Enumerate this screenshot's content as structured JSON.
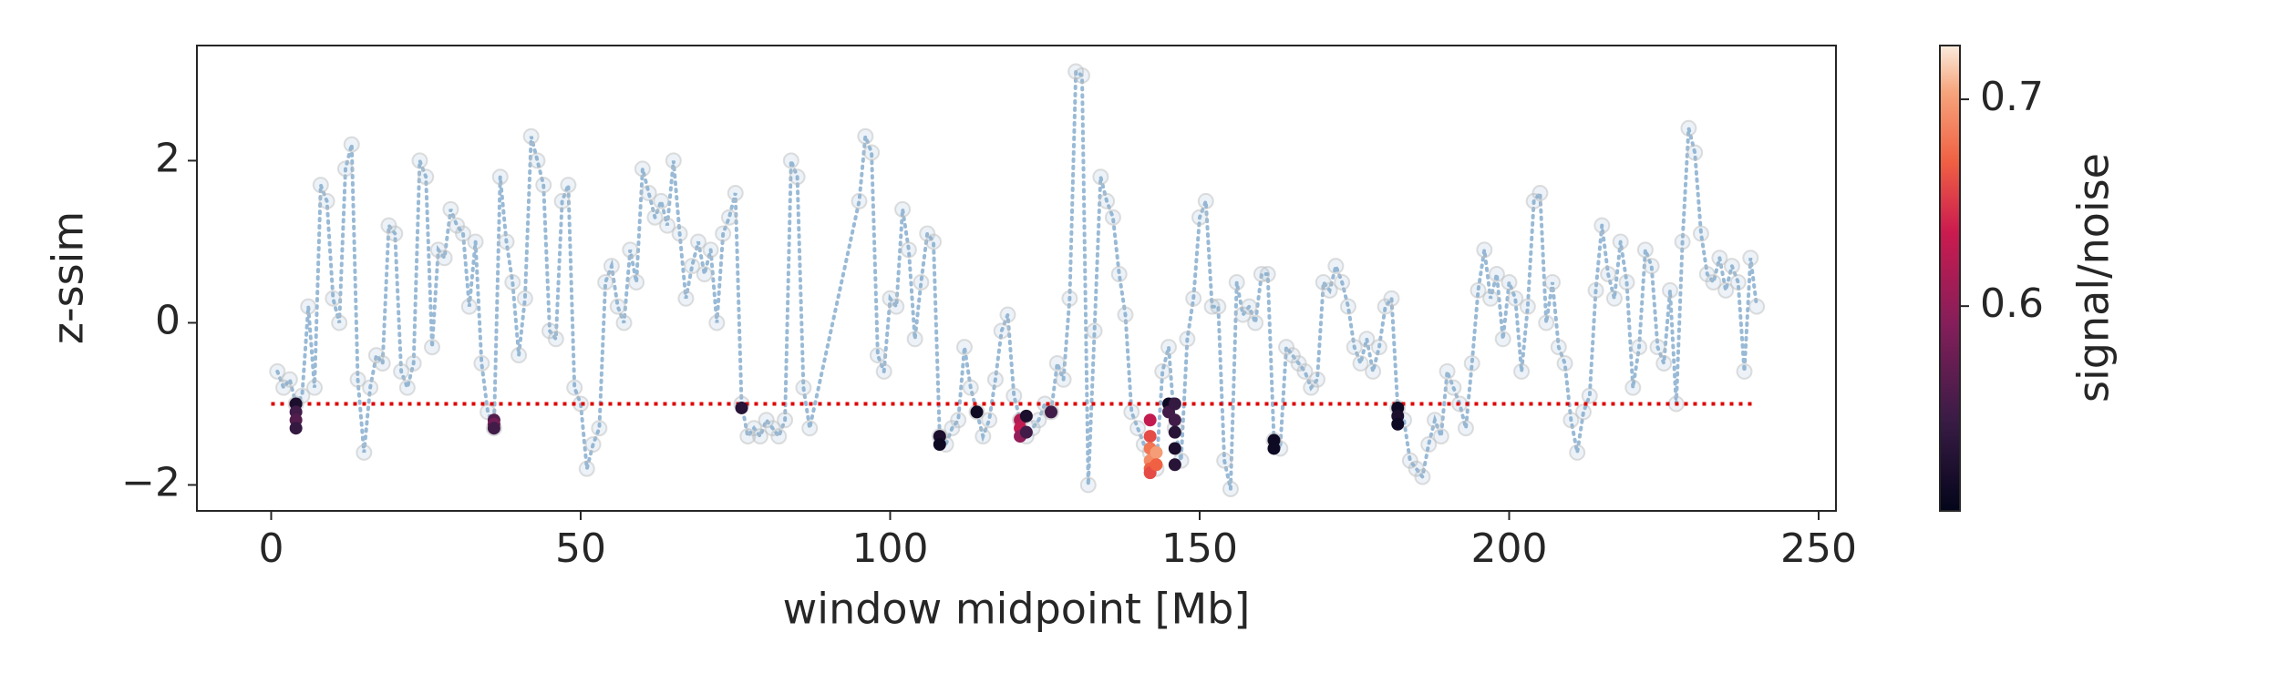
{
  "chart_data": {
    "type": "scatter",
    "xlabel": "window midpoint [Mb]",
    "ylabel": "z-ssim",
    "xlim": [
      -12,
      252.8
    ],
    "ylim": [
      -2.32,
      3.42
    ],
    "xticks": [
      0,
      50,
      100,
      150,
      200,
      250
    ],
    "yticks": [
      {
        "value": -2,
        "label": "−2"
      },
      0,
      2
    ],
    "grid": false,
    "series": [
      {
        "color": "#7fa9cc",
        "marker_color": "#bdbdbd",
        "x": [
          1,
          2,
          3,
          4,
          5,
          6,
          7,
          8,
          9,
          10,
          11,
          12,
          13,
          14,
          15,
          16,
          17,
          18,
          19,
          20,
          21,
          22,
          23,
          24,
          25,
          26,
          27,
          28,
          29,
          30,
          31,
          32,
          33,
          34,
          35,
          36,
          37,
          38,
          39,
          40,
          41,
          42,
          43,
          44,
          45,
          46,
          47,
          48,
          49,
          50,
          51,
          52,
          53,
          54,
          55,
          56,
          57,
          58,
          59,
          60,
          61,
          62,
          63,
          64,
          65,
          66,
          67,
          68,
          69,
          70,
          71,
          72,
          73,
          74,
          75,
          76,
          77,
          78,
          79,
          80,
          81,
          82,
          83,
          84,
          85,
          86,
          87,
          95,
          96,
          97,
          98,
          99,
          100,
          101,
          102,
          103,
          104,
          105,
          106,
          107,
          108,
          109,
          110,
          111,
          112,
          113,
          114,
          115,
          116,
          117,
          118,
          119,
          120,
          121,
          122,
          123,
          124,
          125,
          126,
          127,
          128,
          129,
          130,
          131,
          132,
          133,
          134,
          135,
          136,
          137,
          138,
          139,
          140,
          141,
          142,
          143,
          144,
          145,
          146,
          147,
          148,
          149,
          150,
          151,
          152,
          153,
          154,
          155,
          156,
          157,
          158,
          159,
          160,
          161,
          162,
          163,
          164,
          165,
          166,
          167,
          168,
          169,
          170,
          171,
          172,
          173,
          174,
          175,
          176,
          177,
          178,
          179,
          180,
          181,
          182,
          183,
          184,
          185,
          186,
          187,
          188,
          189,
          190,
          191,
          192,
          193,
          194,
          195,
          196,
          197,
          198,
          199,
          200,
          201,
          202,
          203,
          204,
          205,
          206,
          207,
          208,
          209,
          210,
          211,
          212,
          213,
          214,
          215,
          216,
          217,
          218,
          219,
          220,
          221,
          222,
          223,
          224,
          225,
          226,
          227,
          228,
          229,
          230,
          231,
          232,
          233,
          234,
          235,
          236,
          237,
          238,
          239,
          240
        ],
        "values": [
          -0.6,
          -0.8,
          -0.7,
          -1.0,
          -0.9,
          0.2,
          -0.8,
          1.7,
          1.5,
          0.3,
          0,
          1.9,
          2.2,
          -0.7,
          -1.6,
          -0.8,
          -0.4,
          -0.5,
          1.2,
          1.1,
          -0.6,
          -0.8,
          -0.5,
          2.0,
          1.8,
          -0.3,
          0.9,
          0.8,
          1.4,
          1.2,
          1.1,
          0.2,
          1.0,
          -0.5,
          -1.1,
          -1.3,
          1.8,
          1.0,
          0.5,
          -0.4,
          0.3,
          2.3,
          2.0,
          1.7,
          -0.1,
          -0.2,
          1.5,
          1.7,
          -0.8,
          -1.0,
          -1.8,
          -1.5,
          -1.3,
          0.5,
          0.7,
          0.2,
          0,
          0.9,
          0.5,
          1.9,
          1.6,
          1.3,
          1.5,
          1.2,
          2.0,
          1.1,
          0.3,
          0.7,
          1.0,
          0.6,
          0.9,
          0,
          1.1,
          1.3,
          1.6,
          -1.0,
          -1.4,
          -1.3,
          -1.4,
          -1.2,
          -1.3,
          -1.4,
          -1.2,
          2.0,
          1.8,
          -0.8,
          -1.3,
          1.5,
          2.3,
          2.1,
          -0.4,
          -0.6,
          0.3,
          0.2,
          1.4,
          0.9,
          -0.2,
          0.5,
          1.1,
          1.0,
          -1.4,
          -1.5,
          -1.3,
          -1.2,
          -0.3,
          -0.8,
          -1.1,
          -1.4,
          -1.2,
          -0.7,
          -0.1,
          0.1,
          -0.9,
          -1.2,
          -1.4,
          -1.3,
          -1.2,
          -1.0,
          -1.1,
          -0.5,
          -0.7,
          0.3,
          3.1,
          3.05,
          -2.0,
          -0.1,
          1.8,
          1.5,
          1.3,
          0.6,
          0.1,
          -1.1,
          -1.3,
          -1.5,
          -1.6,
          -1.8,
          -0.6,
          -0.3,
          -1.3,
          -1.7,
          -0.2,
          0.3,
          1.3,
          1.5,
          0.2,
          0.2,
          -1.7,
          -2.05,
          0.5,
          0.1,
          0.2,
          0,
          0.6,
          0.6,
          -1.45,
          -1.55,
          -0.3,
          -0.4,
          -0.5,
          -0.6,
          -0.8,
          -0.7,
          0.5,
          0.4,
          0.7,
          0.5,
          0.2,
          -0.3,
          -0.5,
          -0.2,
          -0.6,
          -0.3,
          0.2,
          0.3,
          -1.05,
          -1.2,
          -1.7,
          -1.8,
          -1.9,
          -1.5,
          -1.2,
          -1.4,
          -0.6,
          -0.8,
          -1.0,
          -1.3,
          -0.5,
          0.4,
          0.9,
          0.3,
          0.6,
          -0.2,
          0.5,
          0.3,
          -0.6,
          0.2,
          1.5,
          1.6,
          0,
          0.5,
          -0.3,
          -0.5,
          -1.2,
          -1.6,
          -1.1,
          -0.9,
          0.4,
          1.2,
          0.6,
          0.3,
          1.0,
          0.5,
          -0.8,
          -0.3,
          0.9,
          0.7,
          -0.3,
          -0.5,
          0.4,
          -1.0,
          1.0,
          2.4,
          2.1,
          1.1,
          0.6,
          0.5,
          0.8,
          0.4,
          0.7,
          0.5,
          -0.6,
          0.8,
          0.2
        ]
      }
    ],
    "threshold": {
      "value": -1,
      "x": [
        0,
        240
      ],
      "color": "#dd0000"
    },
    "highlight": {
      "x": [
        4,
        4,
        4,
        4,
        36,
        36,
        36,
        76,
        108,
        108,
        114,
        121,
        121,
        121,
        122,
        122,
        126,
        142,
        142,
        142,
        142,
        142,
        142,
        143,
        143,
        145,
        145,
        146,
        146,
        146,
        146,
        146,
        162,
        162,
        182,
        182,
        182
      ],
      "values": [
        -1.0,
        -1.1,
        -1.2,
        -1.3,
        -1.2,
        -1.25,
        -1.3,
        -1.05,
        -1.4,
        -1.5,
        -1.1,
        -1.2,
        -1.3,
        -1.4,
        -1.15,
        -1.35,
        -1.1,
        -1.2,
        -1.4,
        -1.55,
        -1.7,
        -1.8,
        -1.85,
        -1.6,
        -1.75,
        -1.0,
        -1.1,
        -1.0,
        -1.2,
        -1.35,
        -1.55,
        -1.75,
        -1.45,
        -1.55,
        -1.05,
        -1.15,
        -1.25
      ],
      "c": [
        0.52,
        0.55,
        0.56,
        0.54,
        0.56,
        0.58,
        0.55,
        0.53,
        0.52,
        0.51,
        0.51,
        0.62,
        0.63,
        0.6,
        0.52,
        0.55,
        0.55,
        0.63,
        0.66,
        0.68,
        0.69,
        0.67,
        0.66,
        0.7,
        0.67,
        0.51,
        0.55,
        0.54,
        0.55,
        0.53,
        0.52,
        0.53,
        0.51,
        0.51,
        0.51,
        0.52,
        0.51
      ]
    },
    "colorbar": {
      "label": "signal/noise",
      "lim": [
        0.501,
        0.726
      ],
      "ticks": [
        0.6,
        0.7
      ],
      "colormap": "rocket"
    }
  }
}
